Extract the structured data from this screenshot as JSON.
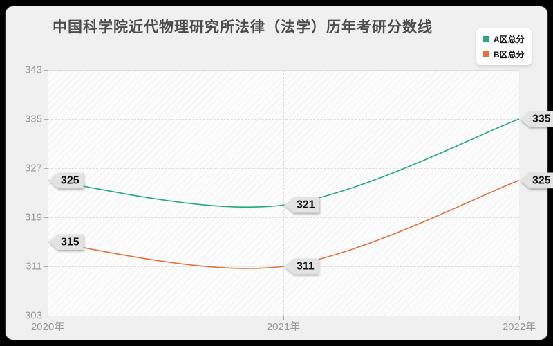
{
  "title": "中国科学院近代物理研究所法律（法学）历年考研分数线",
  "chart_data": {
    "type": "line",
    "title": "中国科学院近代物理研究所法律（法学）历年考研分数线",
    "categories": [
      "2020年",
      "2021年",
      "2022年"
    ],
    "series": [
      {
        "name": "A区总分",
        "color": "#22a981",
        "values": [
          325,
          321,
          335
        ]
      },
      {
        "name": "B区总分",
        "color": "#e5703c",
        "values": [
          315,
          311,
          325
        ]
      }
    ],
    "ylim": [
      303,
      343
    ],
    "yticks": [
      303,
      311,
      319,
      327,
      335,
      343
    ],
    "grid": true,
    "legend_position": "top-right",
    "point_labels": true,
    "smooth": true
  },
  "colors": {
    "frame": "#000000",
    "card_bg": "#f0f0f0",
    "title_text": "#4d4d4d",
    "axis_label": "#999999",
    "axis_line": "#aaaaaa",
    "gridline": "#dddddd",
    "point_label_bg": "#e3e3e3",
    "point_label_text": "#111111",
    "legend_bg": "#ffffff"
  }
}
